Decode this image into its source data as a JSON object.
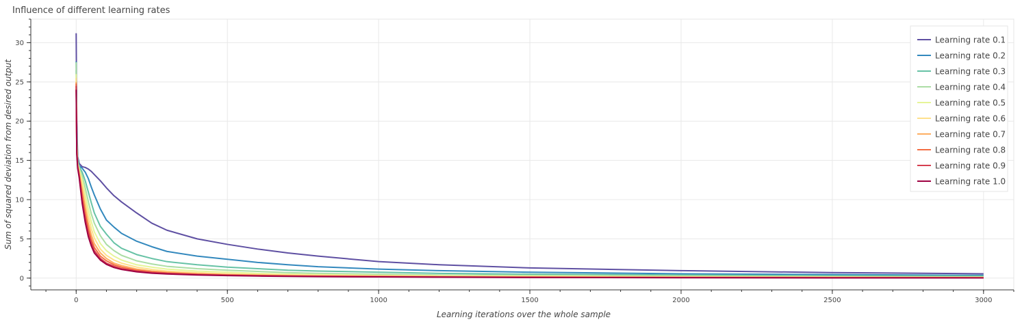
{
  "chart_data": {
    "type": "line",
    "title": "Influence of different learning rates",
    "xlabel": "Learning iterations over the whole sample",
    "ylabel": "Sum of squared deviation from desired output",
    "xlim": [
      -150,
      3100
    ],
    "ylim": [
      -1.5,
      33
    ],
    "x_ticks": [
      0,
      500,
      1000,
      1500,
      2000,
      2500,
      3000
    ],
    "y_ticks": [
      0,
      5,
      10,
      15,
      20,
      25,
      30
    ],
    "grid": true,
    "legend_position": "top-right",
    "x": [
      0,
      2,
      5,
      10,
      20,
      30,
      40,
      50,
      60,
      80,
      100,
      125,
      150,
      200,
      250,
      300,
      400,
      500,
      600,
      700,
      800,
      1000,
      1200,
      1500,
      2000,
      2500,
      3000
    ],
    "series": [
      {
        "name": "Learning rate 0.1",
        "color": "#5e4fa2",
        "values": [
          31.2,
          20.0,
          15.5,
          14.6,
          14.2,
          14.1,
          13.9,
          13.6,
          13.2,
          12.4,
          11.5,
          10.5,
          9.7,
          8.3,
          7.0,
          6.1,
          5.0,
          4.3,
          3.7,
          3.2,
          2.8,
          2.1,
          1.7,
          1.3,
          0.95,
          0.7,
          0.55
        ]
      },
      {
        "name": "Learning rate 0.2",
        "color": "#3288bd",
        "values": [
          27.6,
          18.5,
          15.2,
          14.3,
          14.0,
          13.5,
          12.7,
          11.6,
          10.6,
          8.8,
          7.4,
          6.5,
          5.7,
          4.7,
          4.0,
          3.4,
          2.8,
          2.4,
          2.0,
          1.7,
          1.45,
          1.15,
          0.95,
          0.75,
          0.55,
          0.45,
          0.35
        ]
      },
      {
        "name": "Learning rate 0.3",
        "color": "#66c2a5",
        "values": [
          26.5,
          18.0,
          15.0,
          14.2,
          13.5,
          12.4,
          11.0,
          9.6,
          8.3,
          6.6,
          5.6,
          4.5,
          3.8,
          3.0,
          2.5,
          2.1,
          1.7,
          1.4,
          1.2,
          1.0,
          0.9,
          0.75,
          0.6,
          0.5,
          0.4,
          0.3,
          0.25
        ]
      },
      {
        "name": "Learning rate 0.4",
        "color": "#abdda4",
        "values": [
          27.5,
          17.5,
          14.8,
          14.0,
          13.0,
          11.5,
          9.8,
          8.2,
          7.0,
          5.4,
          4.3,
          3.5,
          2.9,
          2.2,
          1.8,
          1.5,
          1.2,
          1.0,
          0.85,
          0.7,
          0.6,
          0.5,
          0.4,
          0.35,
          0.25,
          0.2,
          0.15
        ]
      },
      {
        "name": "Learning rate 0.5",
        "color": "#e6f598",
        "values": [
          26.0,
          17.0,
          14.6,
          13.8,
          12.5,
          10.6,
          8.8,
          7.2,
          5.9,
          4.4,
          3.5,
          2.8,
          2.3,
          1.7,
          1.4,
          1.15,
          0.9,
          0.75,
          0.6,
          0.5,
          0.45,
          0.35,
          0.3,
          0.25,
          0.2,
          0.15,
          0.1
        ]
      },
      {
        "name": "Learning rate 0.6",
        "color": "#fee08b",
        "values": [
          25.5,
          16.8,
          14.5,
          13.6,
          11.8,
          9.8,
          7.9,
          6.3,
          5.1,
          3.7,
          2.9,
          2.3,
          1.9,
          1.4,
          1.1,
          0.9,
          0.7,
          0.55,
          0.45,
          0.4,
          0.35,
          0.28,
          0.22,
          0.18,
          0.12,
          0.1,
          0.08
        ]
      },
      {
        "name": "Learning rate 0.7",
        "color": "#fdae61",
        "values": [
          25.0,
          16.5,
          14.4,
          13.4,
          11.2,
          9.0,
          7.0,
          5.5,
          4.4,
          3.2,
          2.5,
          1.9,
          1.6,
          1.15,
          0.9,
          0.75,
          0.55,
          0.45,
          0.38,
          0.32,
          0.28,
          0.22,
          0.18,
          0.14,
          0.1,
          0.08,
          0.06
        ]
      },
      {
        "name": "Learning rate 0.8",
        "color": "#f46d43",
        "values": [
          24.8,
          16.2,
          14.3,
          13.2,
          10.6,
          8.2,
          6.3,
          4.9,
          3.9,
          2.8,
          2.2,
          1.7,
          1.4,
          1.0,
          0.8,
          0.65,
          0.5,
          0.4,
          0.33,
          0.28,
          0.24,
          0.2,
          0.16,
          0.12,
          0.09,
          0.07,
          0.05
        ]
      },
      {
        "name": "Learning rate 0.9",
        "color": "#d53e4f",
        "values": [
          24.5,
          16.0,
          14.2,
          13.0,
          10.0,
          7.6,
          5.8,
          4.5,
          3.5,
          2.5,
          1.9,
          1.5,
          1.2,
          0.9,
          0.7,
          0.6,
          0.45,
          0.36,
          0.3,
          0.25,
          0.22,
          0.18,
          0.14,
          0.1,
          0.07,
          0.05,
          0.03
        ]
      },
      {
        "name": "Learning rate 1.0",
        "color": "#9e0142",
        "values": [
          24.0,
          15.8,
          14.0,
          12.8,
          9.5,
          7.1,
          5.3,
          4.1,
          3.2,
          2.3,
          1.75,
          1.35,
          1.1,
          0.8,
          0.62,
          0.52,
          0.4,
          0.32,
          0.26,
          0.22,
          0.19,
          0.15,
          0.12,
          0.08,
          0.05,
          0.03,
          0.02
        ]
      }
    ]
  }
}
